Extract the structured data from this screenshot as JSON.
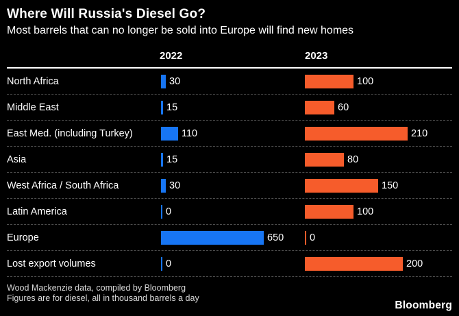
{
  "header": {
    "title": "Where Will Russia's Diesel Go?",
    "subtitle": "Most barrels that can no longer be sold into Europe will find new homes"
  },
  "chart_data": {
    "type": "bar",
    "orientation": "horizontal",
    "grid": false,
    "legend_position": "top-column-headers",
    "unit": "thousand barrels a day",
    "categories": [
      "North Africa",
      "Middle East",
      "East Med. (including Turkey)",
      "Asia",
      "West Africa / South Africa",
      "Latin America",
      "Europe",
      "Lost export volumes"
    ],
    "series": [
      {
        "name": "2022",
        "color": "#1775f3",
        "axis_max": 650,
        "values": [
          30,
          15,
          110,
          15,
          30,
          0,
          650,
          0
        ]
      },
      {
        "name": "2023",
        "color": "#f65c2b",
        "axis_max": 210,
        "values": [
          100,
          60,
          210,
          80,
          150,
          100,
          0,
          200
        ]
      }
    ]
  },
  "footer": {
    "source_line1": "Wood Mackenzie data, compiled by Bloomberg",
    "source_line2": "Figures are for diesel, all in thousand barrels a day",
    "brand": "Bloomberg"
  },
  "colors": {
    "background": "#000000",
    "text": "#ffffff",
    "muted_text": "#d9d9d9",
    "separator": "#4d4d4d",
    "header_rule": "#ffffff",
    "bar_2022": "#1775f3",
    "bar_2023": "#f65c2b"
  }
}
